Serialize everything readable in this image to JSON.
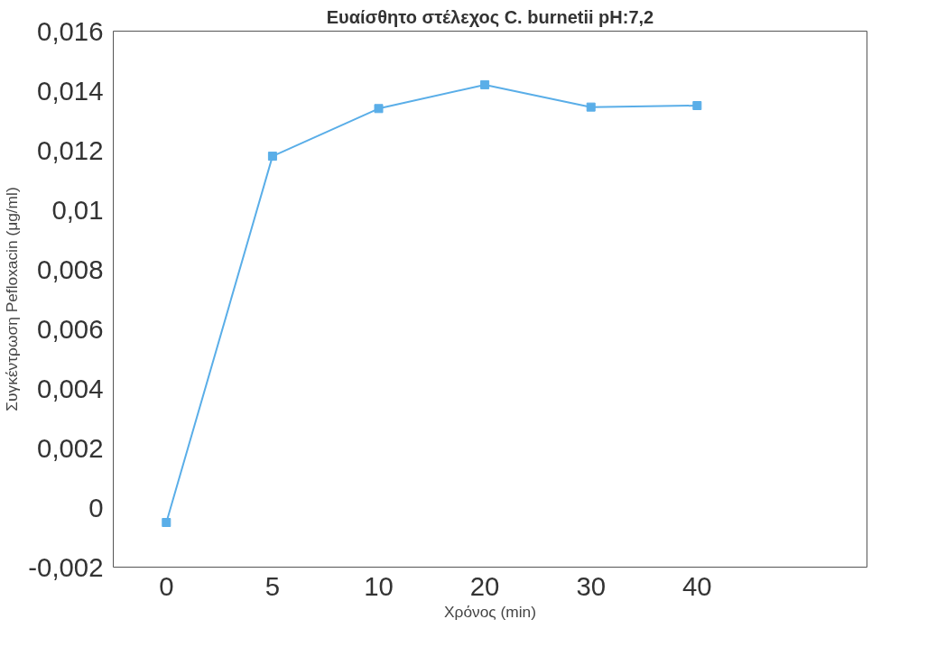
{
  "chart_data": {
    "type": "line",
    "title": "Ευαίσθητο στέλεχος C. burnetii pH:7,2",
    "xlabel": "Χρόνος (min)",
    "ylabel": "Συγκέντρωση Pefloxacin (μg/ml)",
    "categories": [
      "0",
      "5",
      "10",
      "20",
      "30",
      "40"
    ],
    "series": [
      {
        "color": "#5aaee8",
        "values": [
          -0.0005,
          0.0118,
          0.0134,
          0.0142,
          0.01345,
          0.0135
        ]
      }
    ],
    "ylim": [
      -0.002,
      0.016
    ],
    "yticks": [
      {
        "value": -0.002,
        "label": "-0,002"
      },
      {
        "value": 0,
        "label": "0"
      },
      {
        "value": 0.002,
        "label": "0,002"
      },
      {
        "value": 0.004,
        "label": "0,004"
      },
      {
        "value": 0.006,
        "label": "0,006"
      },
      {
        "value": 0.008,
        "label": "0,008"
      },
      {
        "value": 0.01,
        "label": "0,01"
      },
      {
        "value": 0.012,
        "label": "0,012"
      },
      {
        "value": 0.014,
        "label": "0,014"
      },
      {
        "value": 0.016,
        "label": "0,016"
      }
    ],
    "grid": false,
    "marker": "square",
    "line_style": "solid"
  }
}
